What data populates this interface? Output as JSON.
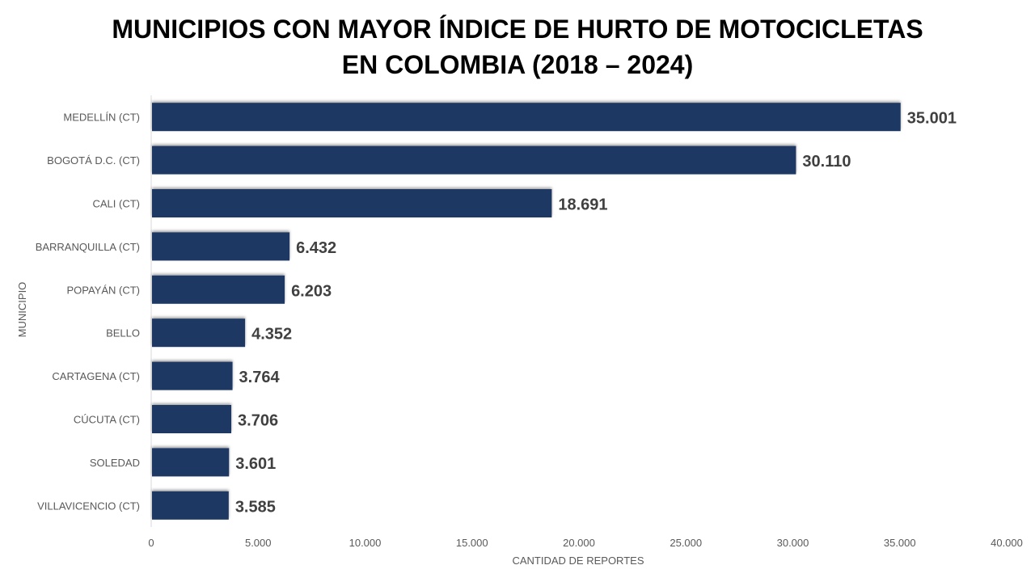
{
  "chart_data": {
    "type": "bar",
    "orientation": "horizontal",
    "title_line1": "MUNICIPIOS CON MAYOR ÍNDICE DE HURTO DE MOTOCICLETAS",
    "title_line2": "EN COLOMBIA (2018 – 2024)",
    "xlabel": "CANTIDAD DE REPORTES",
    "ylabel": "MUNICIPIO",
    "categories": [
      "MEDELLÍN (CT)",
      "BOGOTÁ D.C. (CT)",
      "CALI (CT)",
      "BARRANQUILLA (CT)",
      "POPAYÁN (CT)",
      "BELLO",
      "CARTAGENA (CT)",
      "CÚCUTA (CT)",
      "SOLEDAD",
      "VILLAVICENCIO (CT)"
    ],
    "values": [
      35001,
      30110,
      18691,
      6432,
      6203,
      4352,
      3764,
      3706,
      3601,
      3585
    ],
    "value_labels": [
      "35.001",
      "30.110",
      "18.691",
      "6.432",
      "6.203",
      "4.352",
      "3.764",
      "3.706",
      "3.601",
      "3.585"
    ],
    "xlim": [
      0,
      40000
    ],
    "xticks": [
      0,
      5000,
      10000,
      15000,
      20000,
      25000,
      30000,
      35000,
      40000
    ],
    "xtick_labels": [
      "0",
      "5.000",
      "10.000",
      "15.000",
      "20.000",
      "25.000",
      "30.000",
      "35.000",
      "40.000"
    ],
    "grid": false,
    "bar_color": "#1F3864"
  }
}
